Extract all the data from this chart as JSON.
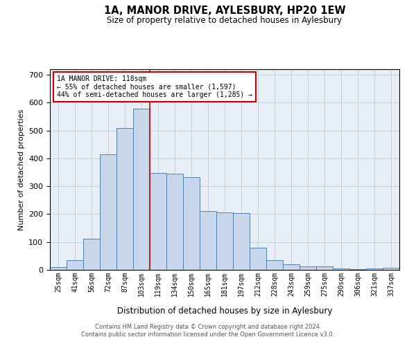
{
  "title": "1A, MANOR DRIVE, AYLESBURY, HP20 1EW",
  "subtitle": "Size of property relative to detached houses in Aylesbury",
  "xlabel": "Distribution of detached houses by size in Aylesbury",
  "ylabel": "Number of detached properties",
  "bar_color": "#c8d8ea",
  "bar_edge_color": "#5080b0",
  "grid_color": "#c8d0dc",
  "background_color": "#e8eef5",
  "annotation_box_color": "#cc0000",
  "vline_color": "#cc0000",
  "categories": [
    "25sqm",
    "41sqm",
    "56sqm",
    "72sqm",
    "87sqm",
    "103sqm",
    "119sqm",
    "134sqm",
    "150sqm",
    "165sqm",
    "181sqm",
    "197sqm",
    "212sqm",
    "228sqm",
    "243sqm",
    "259sqm",
    "275sqm",
    "290sqm",
    "306sqm",
    "321sqm",
    "337sqm"
  ],
  "values": [
    10,
    35,
    112,
    415,
    510,
    578,
    347,
    345,
    333,
    212,
    207,
    203,
    80,
    35,
    20,
    12,
    12,
    5,
    2,
    5,
    7
  ],
  "property_label": "1A MANOR DRIVE: 118sqm",
  "pct_smaller": "55% of detached houses are smaller (1,597)",
  "pct_larger": "44% of semi-detached houses are larger (1,285)",
  "vline_index": 6,
  "ylim": [
    0,
    720
  ],
  "yticks": [
    0,
    100,
    200,
    300,
    400,
    500,
    600,
    700
  ],
  "footnote1": "Contains HM Land Registry data © Crown copyright and database right 2024.",
  "footnote2": "Contains public sector information licensed under the Open Government Licence v3.0."
}
